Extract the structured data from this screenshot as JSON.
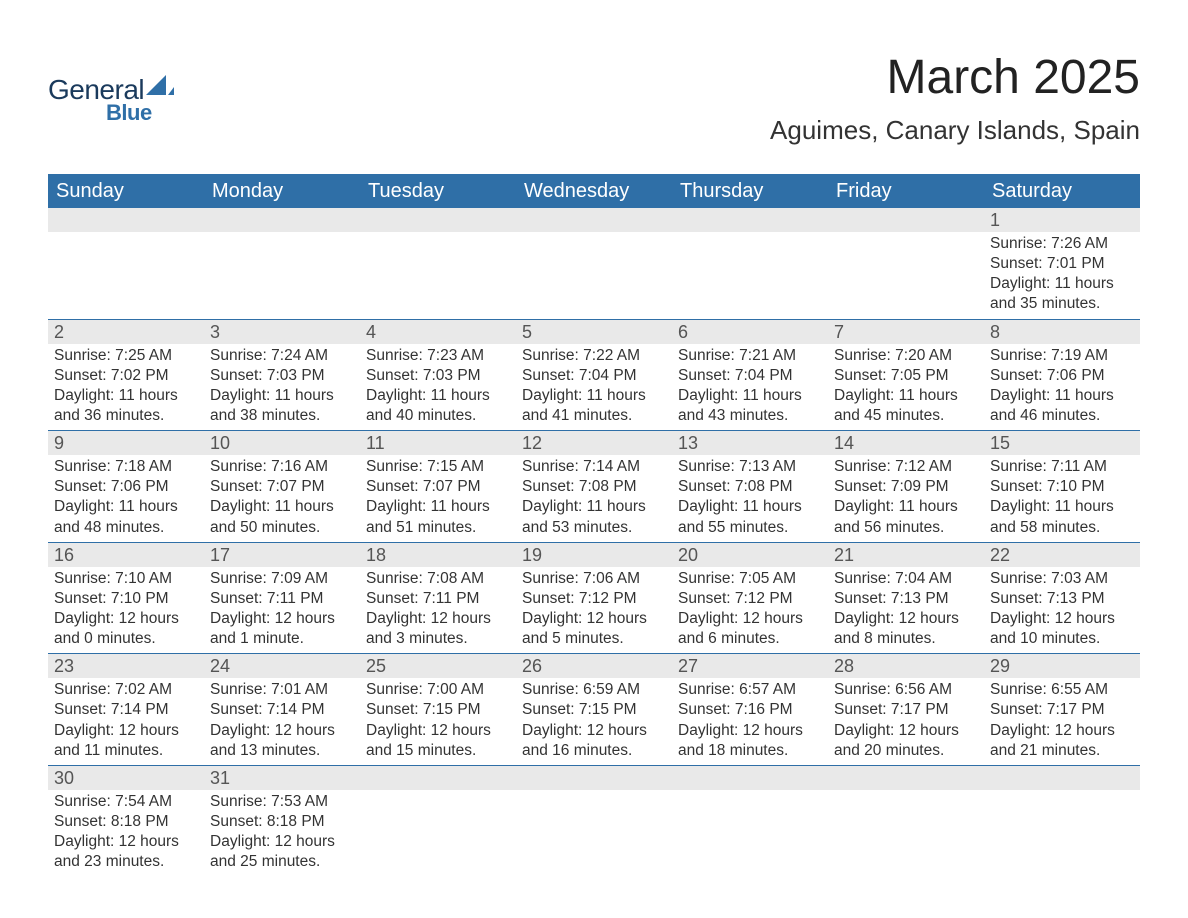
{
  "brand": {
    "word1": "General",
    "word2": "Blue",
    "text_color_dark": "#1a3a5c",
    "text_color_blue": "#2f6fa7",
    "sail_color": "#2f6fa7"
  },
  "header": {
    "month_title": "March 2025",
    "location": "Aguimes, Canary Islands, Spain",
    "title_fontsize": 48,
    "location_fontsize": 26,
    "title_color": "#222222"
  },
  "calendar": {
    "header_bg": "#2f6fa7",
    "header_text_color": "#ffffff",
    "row_border_color": "#2f6fa7",
    "daynum_bg": "#e9e9e9",
    "daynum_color": "#555555",
    "body_text_color": "#333333",
    "body_fontsize": 15.5,
    "columns": [
      "Sunday",
      "Monday",
      "Tuesday",
      "Wednesday",
      "Thursday",
      "Friday",
      "Saturday"
    ],
    "weeks": [
      [
        {
          "day": "",
          "lines": []
        },
        {
          "day": "",
          "lines": []
        },
        {
          "day": "",
          "lines": []
        },
        {
          "day": "",
          "lines": []
        },
        {
          "day": "",
          "lines": []
        },
        {
          "day": "",
          "lines": []
        },
        {
          "day": "1",
          "lines": [
            "Sunrise: 7:26 AM",
            "Sunset: 7:01 PM",
            "Daylight: 11 hours and 35 minutes."
          ]
        }
      ],
      [
        {
          "day": "2",
          "lines": [
            "Sunrise: 7:25 AM",
            "Sunset: 7:02 PM",
            "Daylight: 11 hours and 36 minutes."
          ]
        },
        {
          "day": "3",
          "lines": [
            "Sunrise: 7:24 AM",
            "Sunset: 7:03 PM",
            "Daylight: 11 hours and 38 minutes."
          ]
        },
        {
          "day": "4",
          "lines": [
            "Sunrise: 7:23 AM",
            "Sunset: 7:03 PM",
            "Daylight: 11 hours and 40 minutes."
          ]
        },
        {
          "day": "5",
          "lines": [
            "Sunrise: 7:22 AM",
            "Sunset: 7:04 PM",
            "Daylight: 11 hours and 41 minutes."
          ]
        },
        {
          "day": "6",
          "lines": [
            "Sunrise: 7:21 AM",
            "Sunset: 7:04 PM",
            "Daylight: 11 hours and 43 minutes."
          ]
        },
        {
          "day": "7",
          "lines": [
            "Sunrise: 7:20 AM",
            "Sunset: 7:05 PM",
            "Daylight: 11 hours and 45 minutes."
          ]
        },
        {
          "day": "8",
          "lines": [
            "Sunrise: 7:19 AM",
            "Sunset: 7:06 PM",
            "Daylight: 11 hours and 46 minutes."
          ]
        }
      ],
      [
        {
          "day": "9",
          "lines": [
            "Sunrise: 7:18 AM",
            "Sunset: 7:06 PM",
            "Daylight: 11 hours and 48 minutes."
          ]
        },
        {
          "day": "10",
          "lines": [
            "Sunrise: 7:16 AM",
            "Sunset: 7:07 PM",
            "Daylight: 11 hours and 50 minutes."
          ]
        },
        {
          "day": "11",
          "lines": [
            "Sunrise: 7:15 AM",
            "Sunset: 7:07 PM",
            "Daylight: 11 hours and 51 minutes."
          ]
        },
        {
          "day": "12",
          "lines": [
            "Sunrise: 7:14 AM",
            "Sunset: 7:08 PM",
            "Daylight: 11 hours and 53 minutes."
          ]
        },
        {
          "day": "13",
          "lines": [
            "Sunrise: 7:13 AM",
            "Sunset: 7:08 PM",
            "Daylight: 11 hours and 55 minutes."
          ]
        },
        {
          "day": "14",
          "lines": [
            "Sunrise: 7:12 AM",
            "Sunset: 7:09 PM",
            "Daylight: 11 hours and 56 minutes."
          ]
        },
        {
          "day": "15",
          "lines": [
            "Sunrise: 7:11 AM",
            "Sunset: 7:10 PM",
            "Daylight: 11 hours and 58 minutes."
          ]
        }
      ],
      [
        {
          "day": "16",
          "lines": [
            "Sunrise: 7:10 AM",
            "Sunset: 7:10 PM",
            "Daylight: 12 hours and 0 minutes."
          ]
        },
        {
          "day": "17",
          "lines": [
            "Sunrise: 7:09 AM",
            "Sunset: 7:11 PM",
            "Daylight: 12 hours and 1 minute."
          ]
        },
        {
          "day": "18",
          "lines": [
            "Sunrise: 7:08 AM",
            "Sunset: 7:11 PM",
            "Daylight: 12 hours and 3 minutes."
          ]
        },
        {
          "day": "19",
          "lines": [
            "Sunrise: 7:06 AM",
            "Sunset: 7:12 PM",
            "Daylight: 12 hours and 5 minutes."
          ]
        },
        {
          "day": "20",
          "lines": [
            "Sunrise: 7:05 AM",
            "Sunset: 7:12 PM",
            "Daylight: 12 hours and 6 minutes."
          ]
        },
        {
          "day": "21",
          "lines": [
            "Sunrise: 7:04 AM",
            "Sunset: 7:13 PM",
            "Daylight: 12 hours and 8 minutes."
          ]
        },
        {
          "day": "22",
          "lines": [
            "Sunrise: 7:03 AM",
            "Sunset: 7:13 PM",
            "Daylight: 12 hours and 10 minutes."
          ]
        }
      ],
      [
        {
          "day": "23",
          "lines": [
            "Sunrise: 7:02 AM",
            "Sunset: 7:14 PM",
            "Daylight: 12 hours and 11 minutes."
          ]
        },
        {
          "day": "24",
          "lines": [
            "Sunrise: 7:01 AM",
            "Sunset: 7:14 PM",
            "Daylight: 12 hours and 13 minutes."
          ]
        },
        {
          "day": "25",
          "lines": [
            "Sunrise: 7:00 AM",
            "Sunset: 7:15 PM",
            "Daylight: 12 hours and 15 minutes."
          ]
        },
        {
          "day": "26",
          "lines": [
            "Sunrise: 6:59 AM",
            "Sunset: 7:15 PM",
            "Daylight: 12 hours and 16 minutes."
          ]
        },
        {
          "day": "27",
          "lines": [
            "Sunrise: 6:57 AM",
            "Sunset: 7:16 PM",
            "Daylight: 12 hours and 18 minutes."
          ]
        },
        {
          "day": "28",
          "lines": [
            "Sunrise: 6:56 AM",
            "Sunset: 7:17 PM",
            "Daylight: 12 hours and 20 minutes."
          ]
        },
        {
          "day": "29",
          "lines": [
            "Sunrise: 6:55 AM",
            "Sunset: 7:17 PM",
            "Daylight: 12 hours and 21 minutes."
          ]
        }
      ],
      [
        {
          "day": "30",
          "lines": [
            "Sunrise: 7:54 AM",
            "Sunset: 8:18 PM",
            "Daylight: 12 hours and 23 minutes."
          ]
        },
        {
          "day": "31",
          "lines": [
            "Sunrise: 7:53 AM",
            "Sunset: 8:18 PM",
            "Daylight: 12 hours and 25 minutes."
          ]
        },
        {
          "day": "",
          "lines": []
        },
        {
          "day": "",
          "lines": []
        },
        {
          "day": "",
          "lines": []
        },
        {
          "day": "",
          "lines": []
        },
        {
          "day": "",
          "lines": []
        }
      ]
    ]
  }
}
